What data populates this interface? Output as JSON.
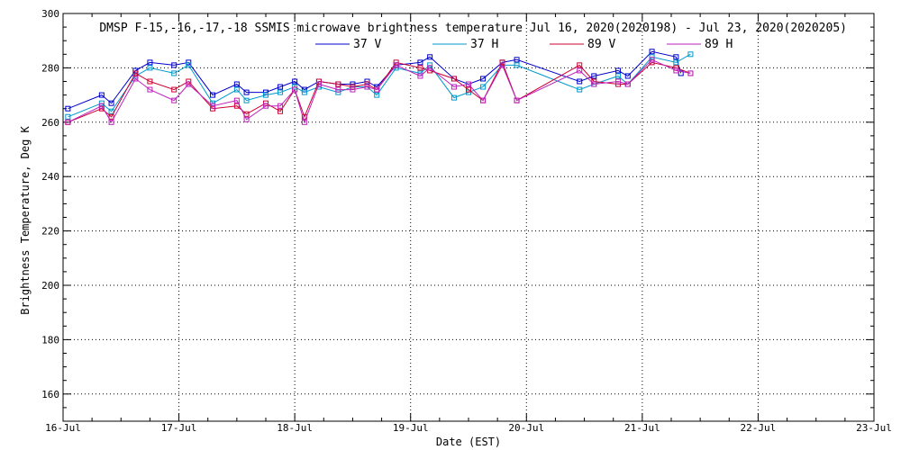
{
  "chart_data": {
    "type": "line",
    "title": "DMSP F-15,-16,-17,-18 SSMIS microwave brightness temperature Jul 16, 2020(2020198) - Jul 23, 2020(2020205)",
    "xlabel": "Date (EST)",
    "ylabel": "Brightness Temperature, Deg K",
    "xlim": [
      "2020-07-16T00:00",
      "2020-07-23T00:00"
    ],
    "ylim": [
      150,
      300
    ],
    "yticks": [
      160,
      180,
      200,
      220,
      240,
      260,
      280,
      300
    ],
    "xticks": [
      "16-Jul",
      "17-Jul",
      "18-Jul",
      "19-Jul",
      "20-Jul",
      "21-Jul",
      "22-Jul",
      "23-Jul"
    ],
    "grid": true,
    "legend_position": "top-center",
    "series": [
      {
        "name": "37 V",
        "color": "#0000cc",
        "points": [
          [
            "2020-07-16T01:00",
            265
          ],
          [
            "2020-07-16T08:00",
            270
          ],
          [
            "2020-07-16T10:00",
            267
          ],
          [
            "2020-07-16T15:00",
            279
          ],
          [
            "2020-07-16T18:00",
            282
          ],
          [
            "2020-07-16T23:00",
            281
          ],
          [
            "2020-07-17T02:00",
            282
          ],
          [
            "2020-07-17T07:00",
            270
          ],
          [
            "2020-07-17T12:00",
            274
          ],
          [
            "2020-07-17T14:00",
            271
          ],
          [
            "2020-07-17T18:00",
            271
          ],
          [
            "2020-07-17T21:00",
            273
          ],
          [
            "2020-07-18T00:00",
            275
          ],
          [
            "2020-07-18T02:00",
            272
          ],
          [
            "2020-07-18T05:00",
            275
          ],
          [
            "2020-07-18T09:00",
            274
          ],
          [
            "2020-07-18T12:00",
            274
          ],
          [
            "2020-07-18T15:00",
            275
          ],
          [
            "2020-07-18T17:00",
            273
          ],
          [
            "2020-07-18T21:00",
            281
          ],
          [
            "2020-07-19T02:00",
            282
          ],
          [
            "2020-07-19T04:00",
            284
          ],
          [
            "2020-07-19T09:00",
            276
          ],
          [
            "2020-07-19T12:00",
            274
          ],
          [
            "2020-07-19T15:00",
            276
          ],
          [
            "2020-07-19T19:00",
            282
          ],
          [
            "2020-07-19T22:00",
            283
          ],
          [
            "2020-07-20T11:00",
            275
          ],
          [
            "2020-07-20T14:00",
            277
          ],
          [
            "2020-07-20T19:00",
            279
          ],
          [
            "2020-07-20T21:00",
            277
          ],
          [
            "2020-07-21T02:00",
            286
          ],
          [
            "2020-07-21T07:00",
            284
          ],
          [
            "2020-07-21T08:00",
            278
          ]
        ]
      },
      {
        "name": "37 H",
        "color": "#0099cc",
        "points": [
          [
            "2020-07-16T01:00",
            262
          ],
          [
            "2020-07-16T08:00",
            267
          ],
          [
            "2020-07-16T10:00",
            264
          ],
          [
            "2020-07-16T15:00",
            277
          ],
          [
            "2020-07-16T18:00",
            280
          ],
          [
            "2020-07-16T23:00",
            278
          ],
          [
            "2020-07-17T02:00",
            281
          ],
          [
            "2020-07-17T07:00",
            267
          ],
          [
            "2020-07-17T12:00",
            272
          ],
          [
            "2020-07-17T14:00",
            268
          ],
          [
            "2020-07-17T18:00",
            270
          ],
          [
            "2020-07-17T21:00",
            271
          ],
          [
            "2020-07-18T00:00",
            273
          ],
          [
            "2020-07-18T02:00",
            271
          ],
          [
            "2020-07-18T05:00",
            273
          ],
          [
            "2020-07-18T09:00",
            271
          ],
          [
            "2020-07-18T12:00",
            273
          ],
          [
            "2020-07-18T15:00",
            273
          ],
          [
            "2020-07-18T17:00",
            270
          ],
          [
            "2020-07-18T21:00",
            280
          ],
          [
            "2020-07-19T02:00",
            278
          ],
          [
            "2020-07-19T04:00",
            281
          ],
          [
            "2020-07-19T09:00",
            269
          ],
          [
            "2020-07-19T12:00",
            271
          ],
          [
            "2020-07-19T15:00",
            273
          ],
          [
            "2020-07-19T19:00",
            281
          ],
          [
            "2020-07-19T22:00",
            281
          ],
          [
            "2020-07-20T11:00",
            272
          ],
          [
            "2020-07-20T14:00",
            274
          ],
          [
            "2020-07-20T19:00",
            277
          ],
          [
            "2020-07-20T21:00",
            274
          ],
          [
            "2020-07-21T02:00",
            284
          ],
          [
            "2020-07-21T07:00",
            282
          ],
          [
            "2020-07-21T10:00",
            285
          ]
        ]
      },
      {
        "name": "89 V",
        "color": "#cc0033",
        "points": [
          [
            "2020-07-16T01:00",
            260
          ],
          [
            "2020-07-16T08:00",
            265
          ],
          [
            "2020-07-16T10:00",
            262
          ],
          [
            "2020-07-16T15:00",
            278
          ],
          [
            "2020-07-16T18:00",
            275
          ],
          [
            "2020-07-16T23:00",
            272
          ],
          [
            "2020-07-17T02:00",
            275
          ],
          [
            "2020-07-17T07:00",
            265
          ],
          [
            "2020-07-17T12:00",
            266
          ],
          [
            "2020-07-17T14:00",
            263
          ],
          [
            "2020-07-17T18:00",
            267
          ],
          [
            "2020-07-17T21:00",
            264
          ],
          [
            "2020-07-18T00:00",
            272
          ],
          [
            "2020-07-18T02:00",
            262
          ],
          [
            "2020-07-18T05:00",
            275
          ],
          [
            "2020-07-18T09:00",
            274
          ],
          [
            "2020-07-18T12:00",
            273
          ],
          [
            "2020-07-18T15:00",
            274
          ],
          [
            "2020-07-18T17:00",
            272
          ],
          [
            "2020-07-18T21:00",
            282
          ],
          [
            "2020-07-19T02:00",
            280
          ],
          [
            "2020-07-19T04:00",
            279
          ],
          [
            "2020-07-19T09:00",
            276
          ],
          [
            "2020-07-19T12:00",
            272
          ],
          [
            "2020-07-19T15:00",
            268
          ],
          [
            "2020-07-19T19:00",
            282
          ],
          [
            "2020-07-19T22:00",
            268
          ],
          [
            "2020-07-20T11:00",
            281
          ],
          [
            "2020-07-20T14:00",
            275
          ],
          [
            "2020-07-20T19:00",
            274
          ],
          [
            "2020-07-20T21:00",
            274
          ],
          [
            "2020-07-21T02:00",
            282
          ],
          [
            "2020-07-21T07:00",
            280
          ],
          [
            "2020-07-21T10:00",
            278
          ]
        ]
      },
      {
        "name": "89 H",
        "color": "#bb22bb",
        "points": [
          [
            "2020-07-16T01:00",
            260
          ],
          [
            "2020-07-16T08:00",
            266
          ],
          [
            "2020-07-16T10:00",
            260
          ],
          [
            "2020-07-16T15:00",
            276
          ],
          [
            "2020-07-16T18:00",
            272
          ],
          [
            "2020-07-16T23:00",
            268
          ],
          [
            "2020-07-17T02:00",
            274
          ],
          [
            "2020-07-17T07:00",
            266
          ],
          [
            "2020-07-17T12:00",
            268
          ],
          [
            "2020-07-17T14:00",
            261
          ],
          [
            "2020-07-17T18:00",
            266
          ],
          [
            "2020-07-17T21:00",
            266
          ],
          [
            "2020-07-18T00:00",
            272
          ],
          [
            "2020-07-18T02:00",
            260
          ],
          [
            "2020-07-18T05:00",
            274
          ],
          [
            "2020-07-18T09:00",
            272
          ],
          [
            "2020-07-18T12:00",
            272
          ],
          [
            "2020-07-18T15:00",
            273
          ],
          [
            "2020-07-18T17:00",
            272
          ],
          [
            "2020-07-18T21:00",
            281
          ],
          [
            "2020-07-19T02:00",
            277
          ],
          [
            "2020-07-19T04:00",
            280
          ],
          [
            "2020-07-19T09:00",
            273
          ],
          [
            "2020-07-19T12:00",
            274
          ],
          [
            "2020-07-19T15:00",
            268
          ],
          [
            "2020-07-19T19:00",
            281
          ],
          [
            "2020-07-19T22:00",
            268
          ],
          [
            "2020-07-20T11:00",
            279
          ],
          [
            "2020-07-20T14:00",
            274
          ],
          [
            "2020-07-20T19:00",
            275
          ],
          [
            "2020-07-20T21:00",
            274
          ],
          [
            "2020-07-21T02:00",
            283
          ],
          [
            "2020-07-21T07:00",
            279
          ],
          [
            "2020-07-21T10:00",
            278
          ]
        ]
      }
    ]
  }
}
